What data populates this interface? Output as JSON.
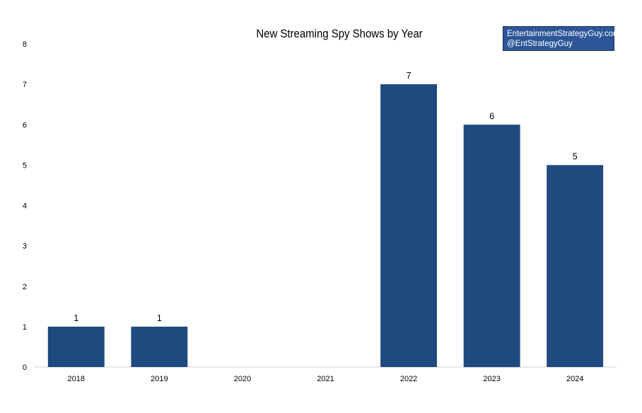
{
  "chart_data": {
    "type": "bar",
    "title": "New Streaming Spy Shows by Year",
    "categories": [
      "2018",
      "2019",
      "2020",
      "2021",
      "2022",
      "2023",
      "2024"
    ],
    "values": [
      1,
      1,
      0,
      0,
      7,
      6,
      5
    ],
    "data_labels": [
      "1",
      "1",
      "",
      "",
      "7",
      "6",
      "5"
    ],
    "ylim": [
      0,
      8
    ],
    "yticks": [
      0,
      1,
      2,
      3,
      4,
      5,
      6,
      7,
      8
    ],
    "bar_color": "#1f4a7f",
    "grid": false,
    "xlabel": "",
    "ylabel": ""
  },
  "watermark": {
    "line1": "EntertainmentStrategyGuy.com",
    "line2": "@EntStrategyGuy",
    "background": "#2c5697"
  }
}
